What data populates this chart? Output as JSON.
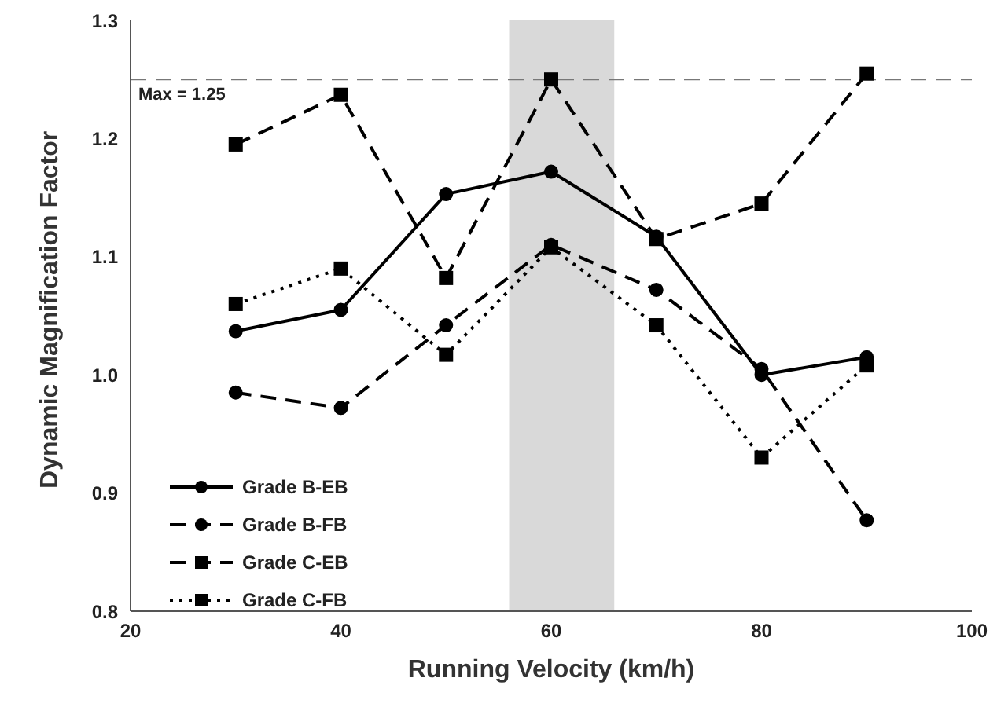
{
  "chart_data": {
    "type": "line",
    "xlabel": "Running Velocity (km/h)",
    "ylabel": "Dynamic Magnification Factor",
    "x": [
      30,
      40,
      50,
      60,
      70,
      80,
      90
    ],
    "series": [
      {
        "name": "Grade B-EB",
        "color": "#000000",
        "marker": "circle",
        "line_style": "solid",
        "values": [
          1.037,
          1.055,
          1.153,
          1.172,
          1.117,
          1.0,
          1.015
        ]
      },
      {
        "name": "Grade B-FB",
        "color": "#000000",
        "marker": "circle",
        "line_style": "dashed",
        "values": [
          0.985,
          0.972,
          1.042,
          1.11,
          1.072,
          1.005,
          0.877
        ]
      },
      {
        "name": "Grade C-EB",
        "color": "#000000",
        "marker": "square",
        "line_style": "dashed",
        "values": [
          1.195,
          1.237,
          1.082,
          1.25,
          1.115,
          1.145,
          1.255
        ]
      },
      {
        "name": "Grade C-FB",
        "color": "#000000",
        "marker": "square",
        "line_style": "dotted",
        "values": [
          1.06,
          1.09,
          1.017,
          1.108,
          1.042,
          0.93,
          1.008
        ]
      }
    ],
    "xlim": [
      20,
      100
    ],
    "xticks": [
      20,
      40,
      60,
      80,
      100
    ],
    "ylim": [
      0.8,
      1.3
    ],
    "yticks": [
      0.8,
      0.9,
      {
        "value": 1,
        "label": "1.0"
      },
      1.1,
      1.2,
      1.3
    ],
    "ref_lines": [
      {
        "axis": "y",
        "value": 1.25,
        "label": "Max = 1.25",
        "line_style": "dashed",
        "color": "#777777"
      }
    ],
    "bands": [
      {
        "axis": "x",
        "from": 56,
        "to": 66,
        "color": "#d9d9d9"
      }
    ],
    "grid": false,
    "legend": "bottom left"
  }
}
